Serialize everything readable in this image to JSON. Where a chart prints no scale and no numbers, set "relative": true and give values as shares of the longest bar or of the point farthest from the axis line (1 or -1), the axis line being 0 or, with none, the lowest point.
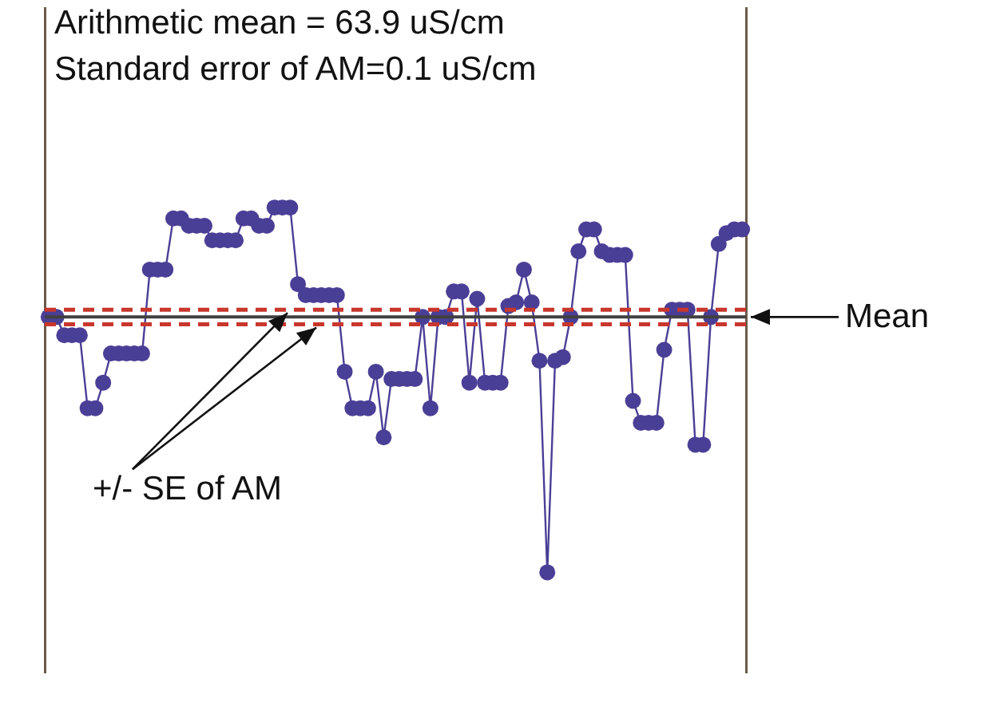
{
  "chart_data": {
    "type": "line",
    "relative": true,
    "marker": "circle",
    "line_style": "solid",
    "grid": false,
    "legend": false,
    "annotations": [
      "Arithmetic mean = 63.9 uS/cm",
      "Standard error of AM=0.1 uS/cm"
    ],
    "categories": [
      null,
      null,
      null,
      null,
      null,
      null,
      null,
      null,
      null,
      null,
      null,
      null,
      null,
      null,
      null,
      null,
      null,
      null,
      null,
      null,
      null,
      null,
      null,
      null,
      null,
      null,
      null,
      null,
      null,
      null,
      null,
      null,
      null,
      null,
      null,
      null,
      null,
      null,
      null,
      null,
      null,
      null,
      null,
      null,
      null,
      null,
      null,
      null,
      null,
      null,
      null,
      null,
      null,
      null,
      null,
      null,
      null,
      null,
      null,
      null,
      null,
      null,
      null,
      null,
      null,
      null,
      null,
      null,
      null,
      null,
      null,
      null,
      null,
      null,
      null,
      null,
      null,
      null,
      null,
      null,
      null,
      null,
      null,
      null,
      null,
      null,
      null,
      null,
      null,
      null
    ],
    "series": [
      {
        "color": "#4a3f96",
        "values": [
          0.7,
          0.7,
          0.65,
          0.65,
          0.65,
          0.45,
          0.45,
          0.52,
          0.6,
          0.6,
          0.6,
          0.6,
          0.6,
          0.83,
          0.83,
          0.83,
          0.97,
          0.97,
          0.95,
          0.95,
          0.95,
          0.91,
          0.91,
          0.91,
          0.91,
          0.97,
          0.97,
          0.95,
          0.95,
          1,
          1,
          1,
          0.79,
          0.76,
          0.76,
          0.76,
          0.76,
          0.76,
          0.55,
          0.45,
          0.45,
          0.45,
          0.55,
          0.37,
          0.53,
          0.53,
          0.53,
          0.53,
          0.7,
          0.45,
          0.7,
          0.7,
          0.77,
          0.77,
          0.52,
          0.75,
          0.52,
          0.52,
          0.52,
          0.73,
          0.74,
          0.83,
          0.74,
          0.58,
          0,
          0.58,
          0.59,
          0.7,
          0.88,
          0.94,
          0.94,
          0.88,
          0.87,
          0.87,
          0.87,
          0.47,
          0.41,
          0.41,
          0.41,
          0.61,
          0.72,
          0.72,
          0.72,
          0.35,
          0.35,
          0.7,
          0.9,
          0.93,
          0.94,
          0.94
        ]
      }
    ],
    "ref_lines": [
      {
        "axis": "y",
        "value": 0.7,
        "label": "Mean",
        "color": "#404040",
        "line_style": "solid"
      },
      {
        "axis": "y",
        "value": 0.72,
        "label": "+/- SE of AM",
        "color": "#c8372d",
        "line_style": "dashed"
      },
      {
        "axis": "y",
        "value": 0.68,
        "color": "#c8372d",
        "line_style": "dashed"
      }
    ]
  }
}
